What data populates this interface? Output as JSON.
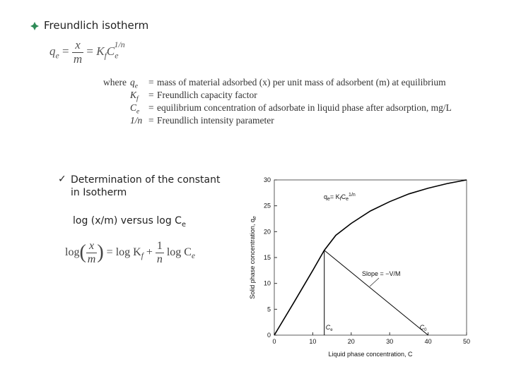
{
  "heading": "Freundlich isotherm",
  "equation": {
    "q": "q",
    "e": "e",
    "equals": "=",
    "x": "x",
    "m": "m",
    "K": "K",
    "f": "f",
    "C": "C",
    "power": "1/n"
  },
  "where": {
    "label": "where",
    "equals": "=",
    "rows": [
      {
        "term": "q",
        "sub": "e",
        "definition": "mass of material adsorbed (x) per unit mass of adsorbent (m) at equilibrium"
      },
      {
        "term": "K",
        "sub": "f",
        "definition": "Freundlich capacity factor"
      },
      {
        "term": "C",
        "sub": "e",
        "definition": "equilibrium concentration of adsorbate in liquid phase after adsorption, mg/L"
      },
      {
        "term": "1/n",
        "sub": null,
        "definition": "Freundlich intensity parameter"
      }
    ]
  },
  "step": "Determination of the constant in Isotherm",
  "plot_text": {
    "main": "log (x/m) versus log C",
    "sub": "e"
  },
  "log_equation": {
    "log": "log",
    "x": "x",
    "m": "m",
    "equals": "= log K",
    "f": "f",
    "plus": "+",
    "one": "1",
    "n": "n",
    "log2": "log C",
    "e": "e"
  },
  "chart_data": {
    "type": "line",
    "xlabel": "Liquid phase concentration, C",
    "ylabel": {
      "text": "Solid phase concentration, q",
      "sub": "e"
    },
    "xlim": [
      0,
      50
    ],
    "ylim": [
      0,
      30
    ],
    "xticks": [
      0,
      10,
      20,
      30,
      40,
      50
    ],
    "yticks": [
      0,
      5,
      10,
      15,
      20,
      25,
      30
    ],
    "color": "#000000",
    "series": [
      {
        "x": [
          0,
          5,
          10,
          13,
          16,
          20,
          25,
          30,
          35,
          40,
          45,
          50
        ],
        "values": [
          0,
          6.2,
          12.5,
          16.4,
          19.3,
          21.6,
          24,
          25.8,
          27.3,
          28.4,
          29.3,
          30
        ]
      },
      {
        "x": [
          13,
          13
        ],
        "values": [
          16.4,
          0
        ]
      },
      {
        "x": [
          13,
          40
        ],
        "values": [
          16.4,
          0
        ]
      }
    ],
    "annotations": {
      "formula": {
        "q": "q",
        "e": "e",
        "equals": "= K",
        "f": "f",
        "C": "C",
        "e2": "e",
        "power": "1/n"
      },
      "slope": "Slope = −V/M",
      "ce": {
        "text": "C",
        "sub": "e"
      },
      "c0": {
        "text": "C",
        "sub": "0"
      }
    }
  }
}
